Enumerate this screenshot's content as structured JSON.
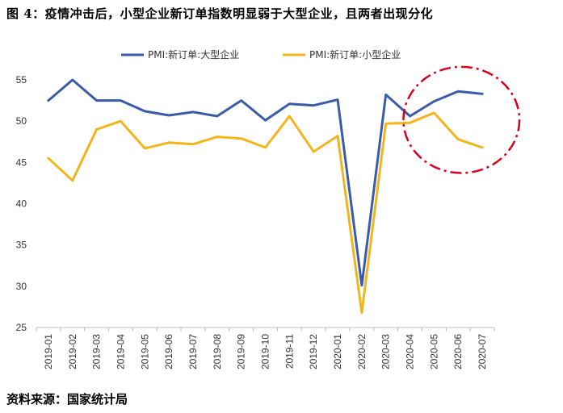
{
  "title": "图 4：疫情冲击后，小型企业新订单指数明显弱于大型企业，且两者出现分化",
  "source": "资料来源：国家统计局",
  "chart_data": {
    "type": "line",
    "categories": [
      "2019-01",
      "2019-02",
      "2019-03",
      "2019-04",
      "2019-05",
      "2019-06",
      "2019-07",
      "2019-08",
      "2019-09",
      "2019-10",
      "2019-11",
      "2019-12",
      "2020-01",
      "2020-02",
      "2020-03",
      "2020-04",
      "2020-05",
      "2020-06",
      "2020-07"
    ],
    "ylim": [
      25,
      55
    ],
    "yticks": [
      25,
      30,
      35,
      40,
      45,
      50,
      55
    ],
    "grid": false,
    "legend_position": "top",
    "series": [
      {
        "name": "PMI:新订单:大型企业",
        "color": "#3A5BA8",
        "values": [
          52.5,
          55.0,
          52.5,
          52.5,
          51.2,
          50.7,
          51.1,
          50.6,
          52.5,
          50.1,
          52.1,
          51.9,
          52.6,
          30.1,
          53.2,
          50.6,
          52.4,
          53.6,
          53.3
        ]
      },
      {
        "name": "PMI:新订单:小型企业",
        "color": "#F2B51B",
        "values": [
          45.5,
          42.8,
          49.0,
          50.0,
          46.7,
          47.4,
          47.2,
          48.1,
          47.9,
          46.8,
          50.6,
          46.3,
          48.2,
          26.8,
          49.7,
          49.8,
          51.0,
          47.8,
          46.8
        ]
      }
    ],
    "annotation": {
      "type": "dash-dot ellipse",
      "color": "#D9001B",
      "covers_categories": [
        "2020-05",
        "2020-07"
      ]
    }
  }
}
